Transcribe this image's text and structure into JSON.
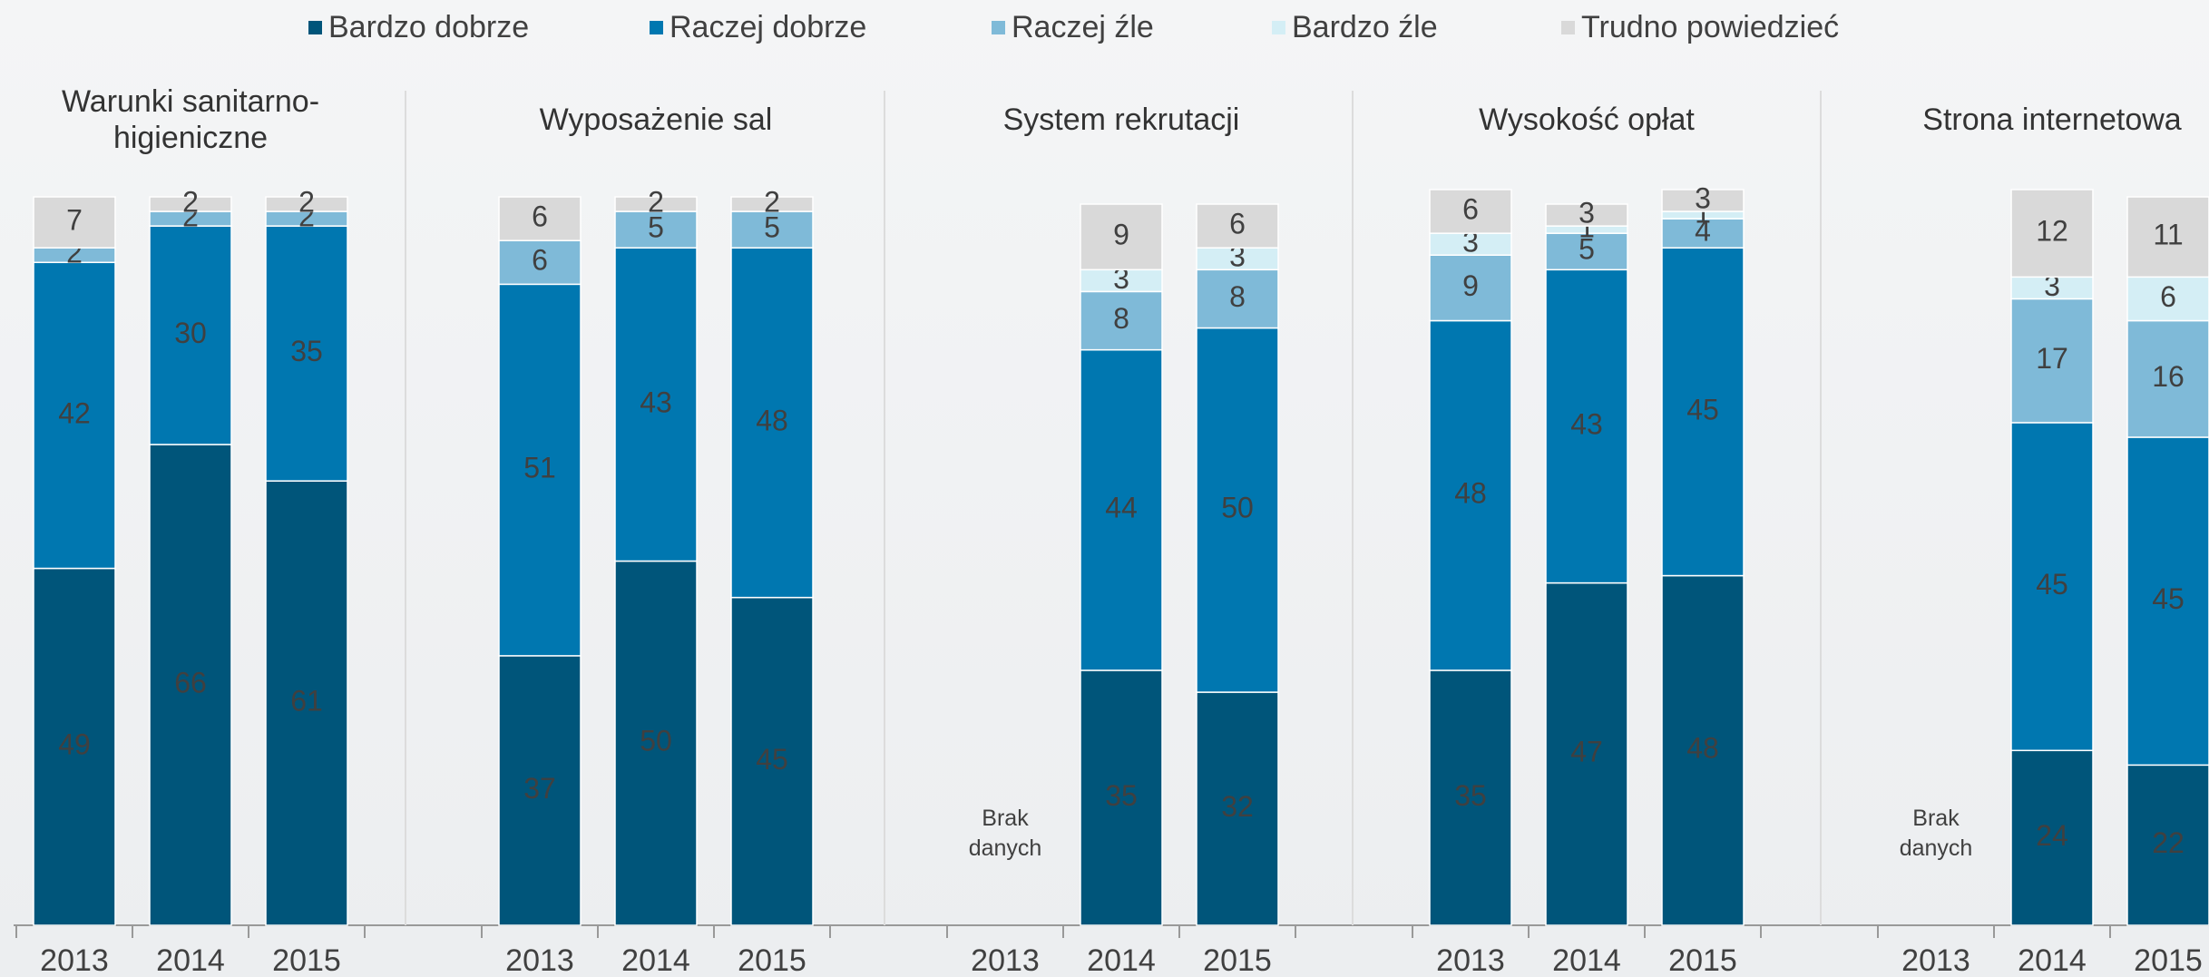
{
  "legend": {
    "series": [
      {
        "name": "Bardzo dobrze",
        "color": "#00557a"
      },
      {
        "name": "Raczej dobrze",
        "color": "#0077b0"
      },
      {
        "name": "Raczej źle",
        "color": "#7fbad8"
      },
      {
        "name": "Bardzo źle",
        "color": "#d4eef5"
      },
      {
        "name": "Trudno powiedzieć",
        "color": "#d9d9d9"
      }
    ]
  },
  "chart_data": [
    {
      "type": "bar",
      "stacked": true,
      "title": "Warunki sanitarno- higieniczne",
      "categories": [
        "2013",
        "2014",
        "2015"
      ],
      "ylim": [
        0,
        100
      ],
      "series": [
        {
          "values": [
            49,
            66,
            61
          ]
        },
        {
          "values": [
            42,
            30,
            35
          ]
        },
        {
          "values": [
            2,
            2,
            2
          ]
        },
        {
          "values": [
            null,
            null,
            null
          ]
        },
        {
          "values": [
            7,
            2,
            2
          ]
        }
      ]
    },
    {
      "type": "bar",
      "stacked": true,
      "title": "Wyposażenie sal",
      "categories": [
        "2013",
        "2014",
        "2015"
      ],
      "ylim": [
        0,
        100
      ],
      "series": [
        {
          "values": [
            37,
            50,
            45
          ]
        },
        {
          "values": [
            51,
            43,
            48
          ]
        },
        {
          "values": [
            6,
            5,
            5
          ]
        },
        {
          "values": [
            null,
            null,
            null
          ]
        },
        {
          "values": [
            6,
            2,
            2
          ]
        }
      ]
    },
    {
      "type": "bar",
      "stacked": true,
      "title": "System rekrutacji",
      "categories": [
        "2013",
        "2014",
        "2015"
      ],
      "ylim": [
        0,
        100
      ],
      "missing_label": "Brak danych",
      "series": [
        {
          "values": [
            null,
            35,
            32
          ]
        },
        {
          "values": [
            null,
            44,
            50
          ]
        },
        {
          "values": [
            null,
            8,
            8
          ]
        },
        {
          "values": [
            null,
            3,
            3
          ]
        },
        {
          "values": [
            null,
            9,
            6
          ]
        }
      ]
    },
    {
      "type": "bar",
      "stacked": true,
      "title": "Wysokość opłat",
      "categories": [
        "2013",
        "2014",
        "2015"
      ],
      "ylim": [
        0,
        100
      ],
      "series": [
        {
          "values": [
            35,
            47,
            48
          ]
        },
        {
          "values": [
            48,
            43,
            45
          ]
        },
        {
          "values": [
            9,
            5,
            4
          ]
        },
        {
          "values": [
            3,
            1,
            1
          ]
        },
        {
          "values": [
            6,
            3,
            3
          ]
        }
      ]
    },
    {
      "type": "bar",
      "stacked": true,
      "title": "Strona internetowa",
      "categories": [
        "2013",
        "2014",
        "2015"
      ],
      "ylim": [
        0,
        100
      ],
      "missing_label": "Brak danych",
      "series": [
        {
          "values": [
            null,
            24,
            22
          ]
        },
        {
          "values": [
            null,
            45,
            45
          ]
        },
        {
          "values": [
            null,
            17,
            16
          ]
        },
        {
          "values": [
            null,
            3,
            6
          ]
        },
        {
          "values": [
            null,
            12,
            11
          ]
        }
      ]
    }
  ]
}
